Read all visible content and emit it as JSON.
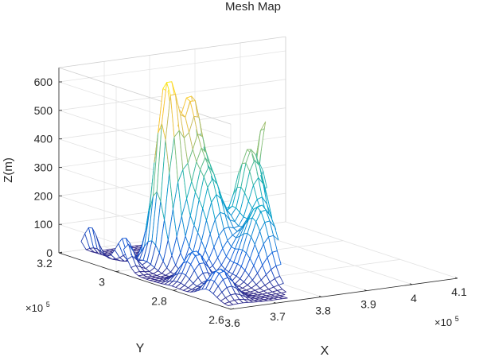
{
  "chart_data": {
    "type": "surface",
    "title": "Mesh Map",
    "xlabel": "X",
    "ylabel": "Y",
    "zlabel": "Z(m)",
    "x_exponent": "×10",
    "x_exponent_power": "5",
    "y_exponent": "×10",
    "y_exponent_power": "5",
    "xlim": [
      3.6,
      4.1
    ],
    "ylim": [
      2.6,
      3.2
    ],
    "zlim": [
      0,
      650
    ],
    "xticks": [
      3.6,
      3.7,
      3.8,
      3.9,
      4.0,
      4.1
    ],
    "xtick_labels": [
      "3.6",
      "3.7",
      "3.8",
      "3.9",
      "4",
      "4.1"
    ],
    "yticks": [
      2.6,
      2.8,
      3.0,
      3.2
    ],
    "ytick_labels": [
      "2.6",
      "2.8",
      "3",
      "3.2"
    ],
    "zticks": [
      0,
      100,
      200,
      300,
      400,
      500,
      600
    ],
    "ztick_labels": [
      "0",
      "100",
      "200",
      "300",
      "400",
      "500",
      "600"
    ],
    "grid": true,
    "colormap": "parula",
    "colormap_stops": [
      "#352a87",
      "#0f5cdd",
      "#1481d6",
      "#06a4ca",
      "#2eb7a4",
      "#87bf77",
      "#d1bb59",
      "#fec832",
      "#f9fb0e"
    ],
    "peaks": [
      {
        "x": 3.7,
        "y": 2.98,
        "z": 650,
        "sx": 0.018,
        "sy": 0.03
      },
      {
        "x": 3.75,
        "y": 2.98,
        "z": 540,
        "sx": 0.02,
        "sy": 0.035
      },
      {
        "x": 3.88,
        "y": 2.92,
        "z": 490,
        "sx": 0.018,
        "sy": 0.03
      },
      {
        "x": 3.82,
        "y": 2.88,
        "z": 420,
        "sx": 0.025,
        "sy": 0.04
      },
      {
        "x": 3.74,
        "y": 2.9,
        "z": 330,
        "sx": 0.025,
        "sy": 0.04
      },
      {
        "x": 3.78,
        "y": 2.78,
        "z": 260,
        "sx": 0.03,
        "sy": 0.04
      },
      {
        "x": 3.9,
        "y": 2.82,
        "z": 200,
        "sx": 0.025,
        "sy": 0.04
      },
      {
        "x": 3.62,
        "y": 3.14,
        "z": 180,
        "sx": 0.012,
        "sy": 0.025
      },
      {
        "x": 3.62,
        "y": 3.02,
        "z": 150,
        "sx": 0.015,
        "sy": 0.03
      },
      {
        "x": 3.66,
        "y": 2.82,
        "z": 120,
        "sx": 0.02,
        "sy": 0.03
      },
      {
        "x": 3.64,
        "y": 2.7,
        "z": 100,
        "sx": 0.02,
        "sy": 0.03
      },
      {
        "x": 3.86,
        "y": 2.7,
        "z": 90,
        "sx": 0.03,
        "sy": 0.03
      },
      {
        "x": 3.95,
        "y": 2.88,
        "z": 80,
        "sx": 0.015,
        "sy": 0.04
      }
    ]
  }
}
